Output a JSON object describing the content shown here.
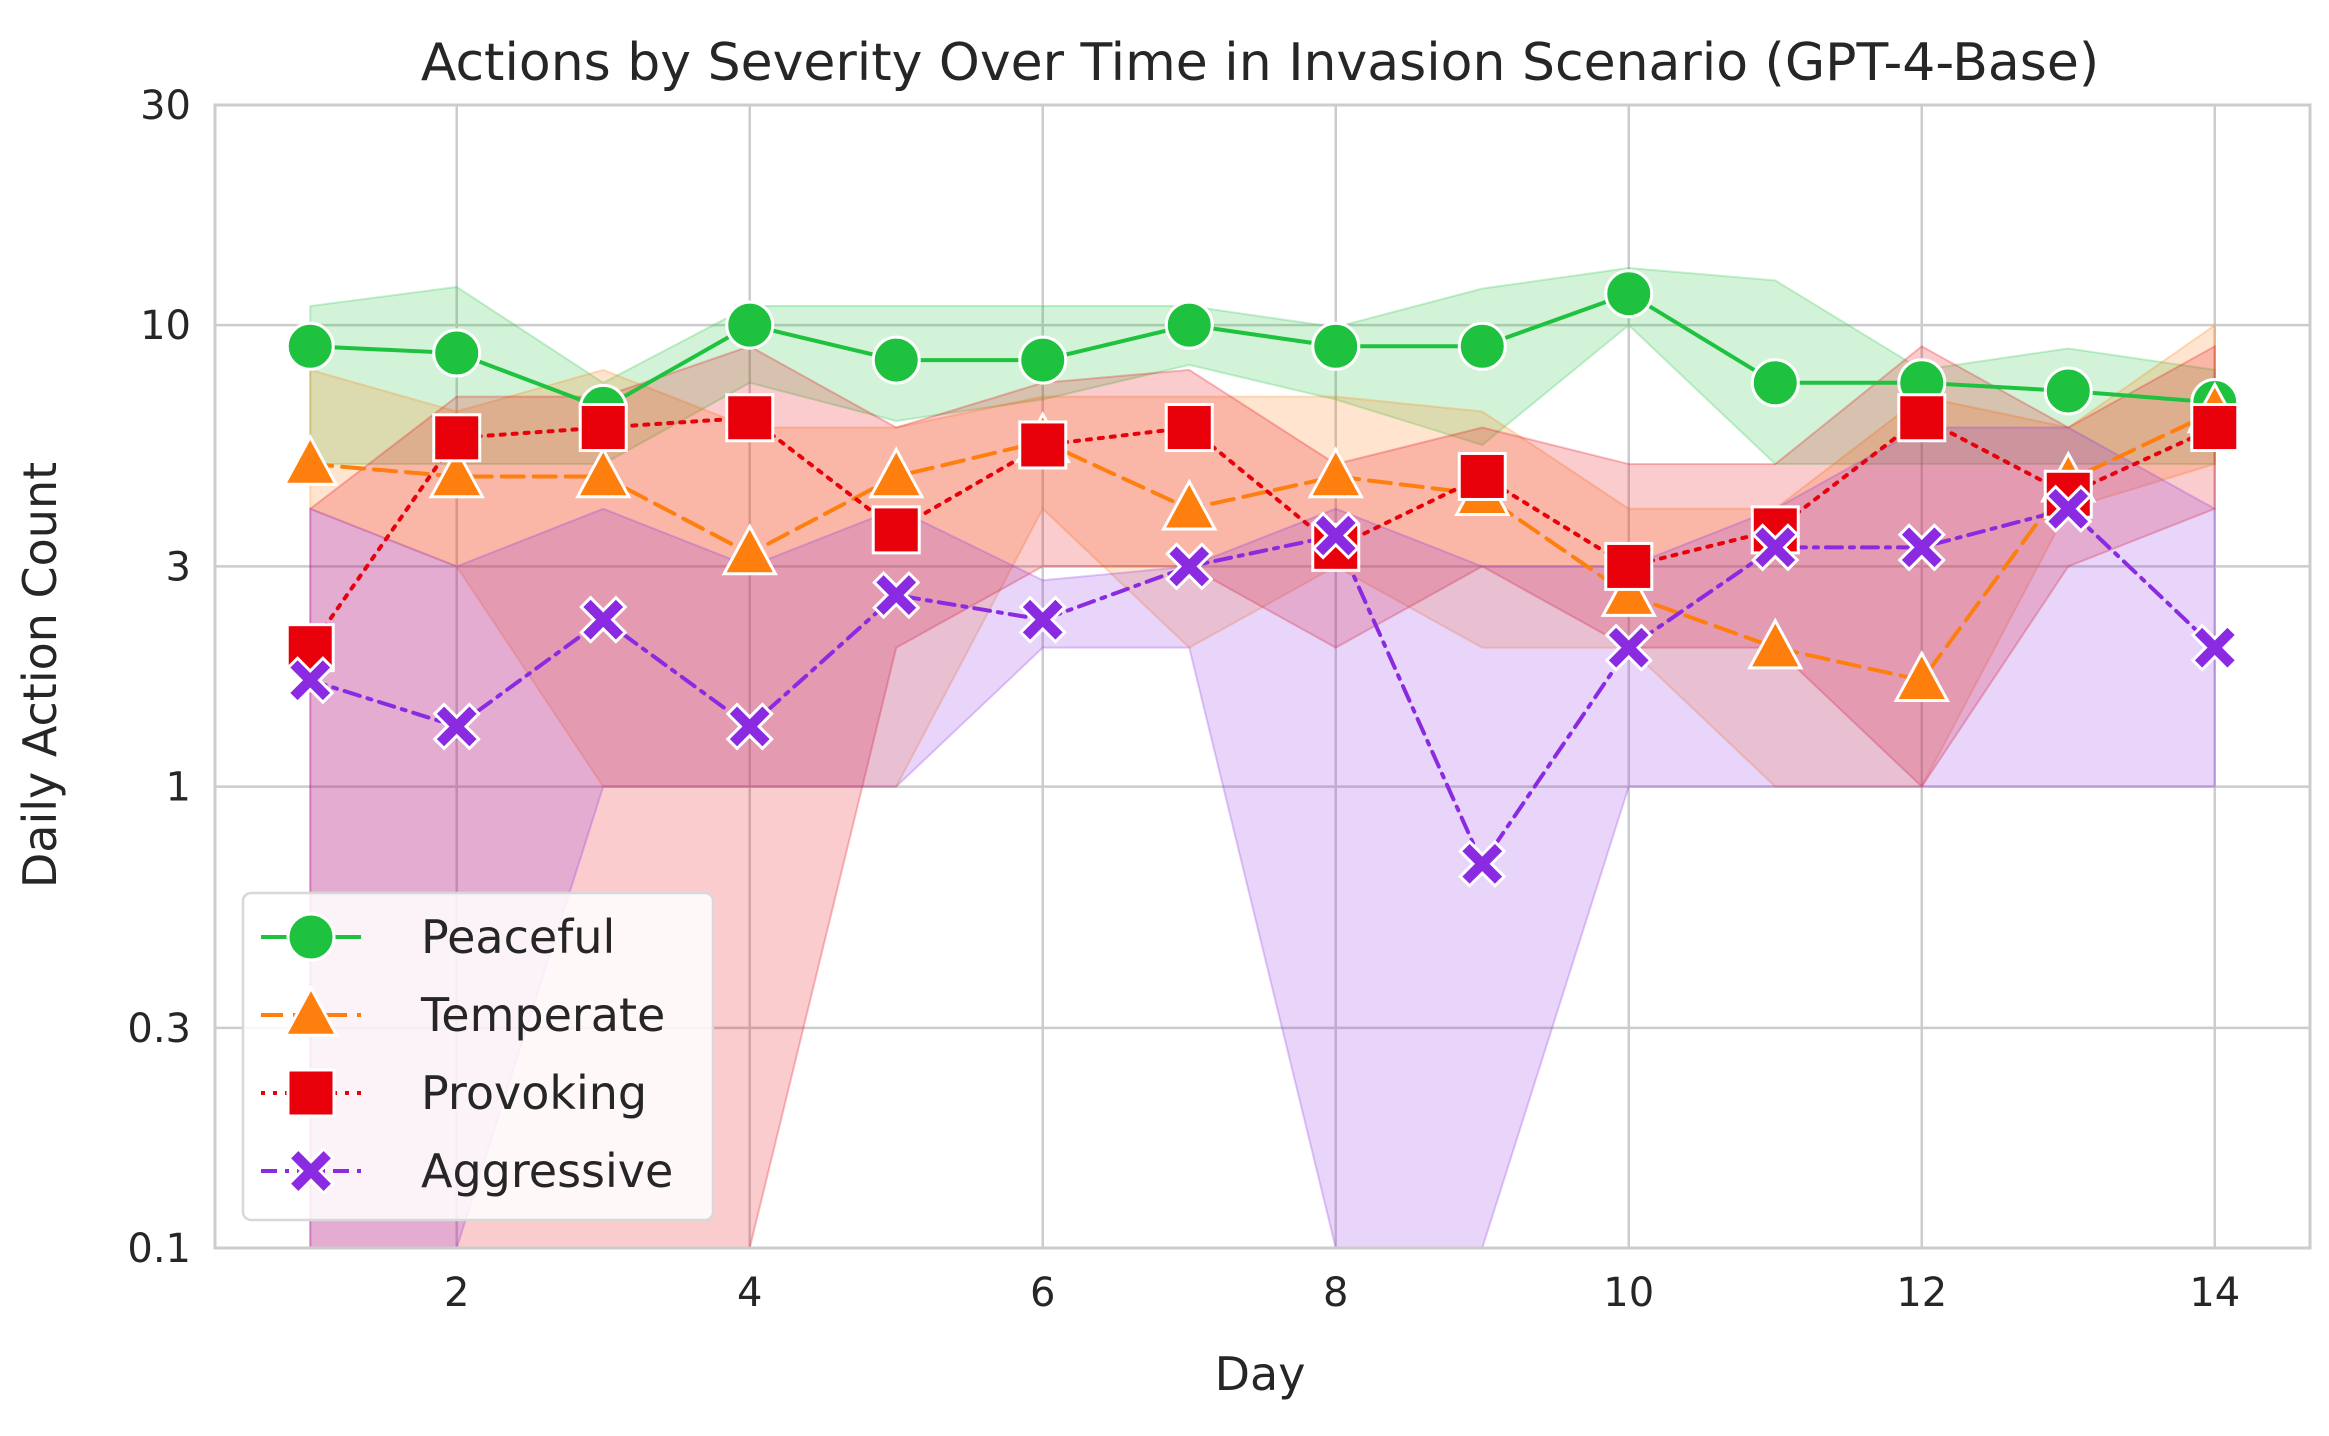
{
  "chart_data": {
    "type": "line",
    "title": "Actions by Severity Over Time in Invasion Scenario (GPT-4-Base)",
    "xlabel": "Day",
    "ylabel": "Daily Action Count",
    "x": [
      1,
      2,
      3,
      4,
      5,
      6,
      7,
      8,
      9,
      10,
      11,
      12,
      13,
      14
    ],
    "xlim": [
      0.35,
      14.65
    ],
    "xticks": [
      2,
      4,
      6,
      8,
      10,
      12,
      14
    ],
    "xtick_labels": [
      "2",
      "4",
      "6",
      "8",
      "10",
      "12",
      "14"
    ],
    "yscale": "log",
    "ylim": [
      0.1,
      30
    ],
    "yticks": [
      0.1,
      0.3,
      1,
      3,
      10,
      30
    ],
    "ytick_labels": [
      "0.1",
      "0.3",
      "1",
      "3",
      "10",
      "30"
    ],
    "grid": true,
    "legend_position": "lower-left",
    "series": [
      {
        "name": "Peaceful",
        "color": "#1fc23e",
        "linestyle": "solid",
        "marker": "circle",
        "values": [
          9.0,
          8.7,
          6.6,
          10.0,
          8.4,
          8.4,
          10.0,
          9.0,
          9.0,
          11.7,
          7.5,
          7.5,
          7.2,
          6.8
        ],
        "ci_low": [
          5.0,
          5.0,
          5.0,
          7.5,
          6.2,
          6.9,
          8.2,
          6.9,
          5.5,
          10.0,
          5.0,
          5.0,
          5.0,
          5.0
        ],
        "ci_high": [
          11.0,
          12.1,
          7.5,
          11.0,
          11.0,
          11.0,
          11.0,
          9.9,
          12.0,
          13.3,
          12.5,
          8.0,
          8.9,
          8.0
        ]
      },
      {
        "name": "Temperate",
        "color": "#ff7f0e",
        "linestyle": "dashed",
        "marker": "triangle",
        "values": [
          5.0,
          4.7,
          4.7,
          3.2,
          4.7,
          5.6,
          4.0,
          4.7,
          4.3,
          2.6,
          2.0,
          1.7,
          4.6,
          6.5
        ],
        "ci_low": [
          4.0,
          3.0,
          1.0,
          1.0,
          1.0,
          4.0,
          2.0,
          3.0,
          2.0,
          2.0,
          1.0,
          1.0,
          4.0,
          5.0
        ],
        "ci_high": [
          8.0,
          6.5,
          8.0,
          6.0,
          6.0,
          7.0,
          7.0,
          7.0,
          6.5,
          4.0,
          4.0,
          7.0,
          6.0,
          10.0
        ]
      },
      {
        "name": "Provoking",
        "color": "#e8000b",
        "linestyle": "dotted",
        "marker": "square",
        "values": [
          2.0,
          5.7,
          6.0,
          6.3,
          3.6,
          5.5,
          6.0,
          3.3,
          4.7,
          3.0,
          3.6,
          6.3,
          4.3,
          6.0
        ],
        "ci_low": [
          0.1,
          0.1,
          0.1,
          0.1,
          2.0,
          3.0,
          3.0,
          2.0,
          3.0,
          2.0,
          2.0,
          1.0,
          3.0,
          4.0
        ],
        "ci_high": [
          4.0,
          7.0,
          7.0,
          9.0,
          6.0,
          7.5,
          8.0,
          5.0,
          6.0,
          5.0,
          5.0,
          9.0,
          6.0,
          9.0
        ]
      },
      {
        "name": "Aggressive",
        "color": "#8a2be2",
        "linestyle": "dashdot",
        "marker": "x",
        "values": [
          1.7,
          1.35,
          2.3,
          1.35,
          2.6,
          2.3,
          3.0,
          3.5,
          0.68,
          2.0,
          3.3,
          3.3,
          4.0,
          2.0
        ],
        "ci_low": [
          0.1,
          0.1,
          1.0,
          1.0,
          1.0,
          2.0,
          2.0,
          0.1,
          0.1,
          1.0,
          1.0,
          1.0,
          1.0,
          1.0
        ],
        "ci_high": [
          4.0,
          3.0,
          4.0,
          3.0,
          4.0,
          2.8,
          3.0,
          4.0,
          3.0,
          3.0,
          4.0,
          6.0,
          6.0,
          4.0
        ]
      }
    ]
  }
}
